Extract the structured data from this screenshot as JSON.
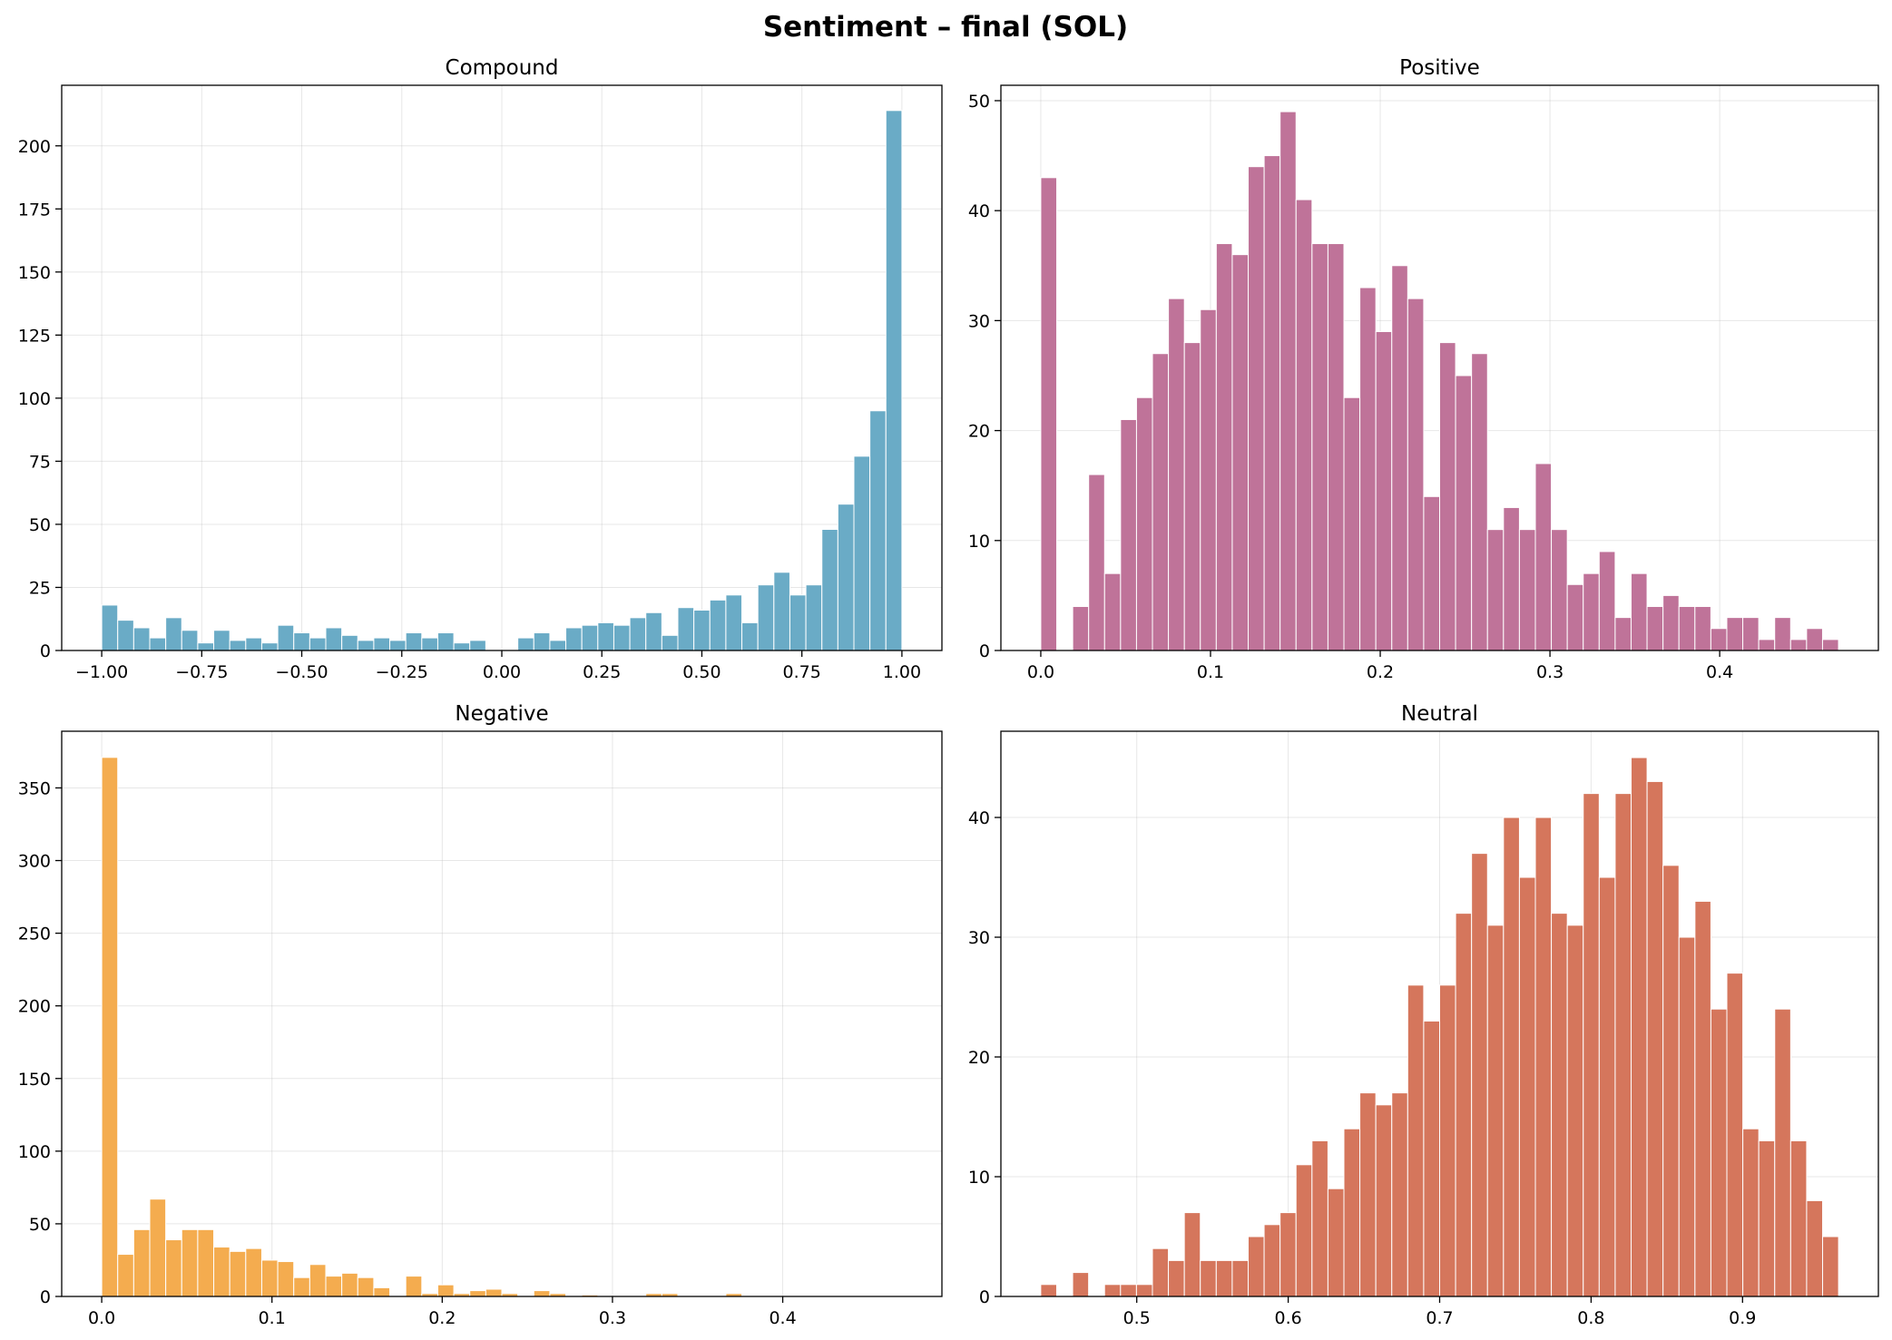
{
  "figure": {
    "title": "Sentiment – final (SOL)"
  },
  "chart_data": [
    {
      "type": "bar",
      "title": "Compound",
      "color": "#6aabc6",
      "xlim": [
        -1.1,
        1.1
      ],
      "ylim": [
        0,
        224
      ],
      "xticks": [
        -1.0,
        -0.75,
        -0.5,
        -0.25,
        0.0,
        0.25,
        0.5,
        0.75,
        1.0
      ],
      "xtick_labels": [
        "−1.00",
        "−0.75",
        "−0.50",
        "−0.25",
        "0.00",
        "0.25",
        "0.50",
        "0.75",
        "1.00"
      ],
      "yticks": [
        0,
        25,
        50,
        75,
        100,
        125,
        150,
        175,
        200
      ],
      "ytick_labels": [
        "0",
        "25",
        "50",
        "75",
        "100",
        "125",
        "150",
        "175",
        "200"
      ],
      "bin_start": -1.0,
      "bin_width": 0.04,
      "values": [
        18,
        12,
        9,
        5,
        13,
        8,
        3,
        8,
        4,
        5,
        3,
        10,
        7,
        5,
        9,
        6,
        4,
        5,
        4,
        7,
        5,
        7,
        3,
        4,
        0,
        0,
        5,
        7,
        4,
        9,
        10,
        11,
        10,
        13,
        15,
        6,
        17,
        16,
        20,
        22,
        11,
        26,
        31,
        22,
        26,
        48,
        58,
        77,
        95,
        214
      ]
    },
    {
      "type": "bar",
      "title": "Positive",
      "color": "#bf7399",
      "xlim": [
        -0.0235,
        0.4935
      ],
      "ylim": [
        0,
        51.4
      ],
      "xticks": [
        0.0,
        0.1,
        0.2,
        0.3,
        0.4
      ],
      "xtick_labels": [
        "0.0",
        "0.1",
        "0.2",
        "0.3",
        "0.4"
      ],
      "yticks": [
        0,
        10,
        20,
        30,
        40,
        50
      ],
      "ytick_labels": [
        "0",
        "10",
        "20",
        "30",
        "40",
        "50"
      ],
      "bin_start": 0.0,
      "bin_width": 0.0094,
      "values": [
        43,
        0,
        4,
        16,
        7,
        21,
        23,
        27,
        32,
        28,
        31,
        37,
        36,
        44,
        45,
        49,
        41,
        37,
        37,
        23,
        33,
        29,
        35,
        32,
        14,
        28,
        25,
        27,
        11,
        13,
        11,
        17,
        11,
        6,
        7,
        9,
        3,
        7,
        4,
        5,
        4,
        4,
        2,
        3,
        3,
        1,
        3,
        1,
        2,
        1
      ]
    },
    {
      "type": "bar",
      "title": "Negative",
      "color": "#f4ac4f",
      "xlim": [
        -0.0235,
        0.4935
      ],
      "ylim": [
        0,
        389
      ],
      "xticks": [
        0.0,
        0.1,
        0.2,
        0.3,
        0.4
      ],
      "xtick_labels": [
        "0.0",
        "0.1",
        "0.2",
        "0.3",
        "0.4"
      ],
      "yticks": [
        0,
        50,
        100,
        150,
        200,
        250,
        300,
        350
      ],
      "ytick_labels": [
        "0",
        "50",
        "100",
        "150",
        "200",
        "250",
        "300",
        "350"
      ],
      "bin_start": 0.0,
      "bin_width": 0.0094,
      "values": [
        371,
        29,
        46,
        67,
        39,
        46,
        46,
        34,
        31,
        33,
        25,
        24,
        13,
        22,
        14,
        16,
        13,
        6,
        0,
        14,
        2,
        8,
        2,
        4,
        5,
        2,
        0,
        4,
        2,
        0,
        1,
        0,
        0,
        0,
        2,
        2,
        0,
        0,
        0,
        2,
        0,
        0,
        0,
        0,
        0,
        0,
        0,
        0,
        0,
        0
      ]
    },
    {
      "type": "bar",
      "title": "Neutral",
      "color": "#d5765c",
      "xlim": [
        0.4103,
        0.9897
      ],
      "ylim": [
        0,
        47.2
      ],
      "xticks": [
        0.5,
        0.6,
        0.7,
        0.8,
        0.9
      ],
      "xtick_labels": [
        "0.5",
        "0.6",
        "0.7",
        "0.8",
        "0.9"
      ],
      "yticks": [
        0,
        10,
        20,
        30,
        40
      ],
      "ytick_labels": [
        "0",
        "10",
        "20",
        "30",
        "40"
      ],
      "bin_start": 0.4366,
      "bin_width": 0.010536,
      "values": [
        1,
        0,
        2,
        0,
        1,
        1,
        1,
        4,
        3,
        7,
        3,
        3,
        3,
        5,
        6,
        7,
        11,
        13,
        9,
        14,
        17,
        16,
        17,
        26,
        23,
        26,
        32,
        37,
        31,
        40,
        35,
        40,
        32,
        31,
        42,
        35,
        42,
        45,
        43,
        36,
        30,
        33,
        24,
        27,
        14,
        13,
        24,
        13,
        8,
        5
      ]
    }
  ]
}
